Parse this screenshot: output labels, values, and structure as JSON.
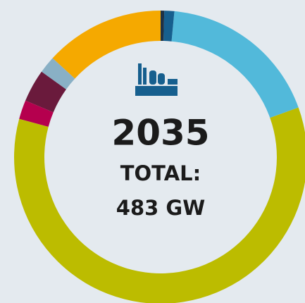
{
  "chart_data": {
    "type": "donut",
    "title": "2035",
    "annotations": [
      "TOTAL:",
      "483 GW"
    ],
    "values": [
      0.4,
      1.1,
      18,
      59.7,
      2.1,
      3.6,
      1.9,
      13.2
    ],
    "colors": [
      "#1d3247",
      "#165f8e",
      "#52b9da",
      "#bcbc00",
      "#b5004e",
      "#6a1a3c",
      "#89b0c5",
      "#f5a900"
    ]
  }
}
